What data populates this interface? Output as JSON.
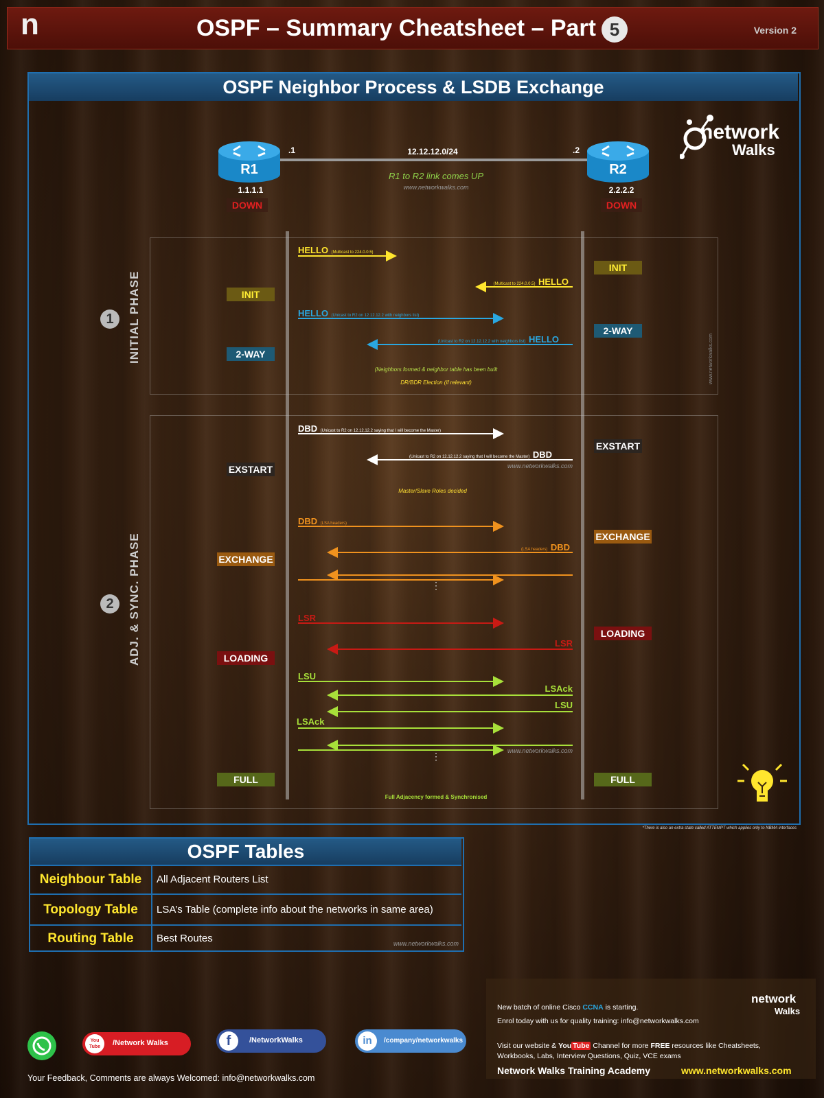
{
  "header": {
    "logo_letter": "n",
    "title": "OSPF – Summary Cheatsheet – Part",
    "part_number": "5",
    "version": "Version 2"
  },
  "section": {
    "title": "OSPF Neighbor Process & LSDB Exchange"
  },
  "brand": {
    "line1": "network",
    "line2": "Walks"
  },
  "topology": {
    "r1_name": "R1",
    "r1_id": "1.1.1.1",
    "r1_if": ".1",
    "r2_name": "R2",
    "r2_id": "2.2.2.2",
    "r2_if": ".2",
    "subnet": "12.12.12.0/24",
    "link_msg": "R1 to R2 link comes UP",
    "watermark": "www.networkwalks.com",
    "r1_state": "DOWN",
    "r2_state": "DOWN"
  },
  "phase1": {
    "number": "1",
    "label": "INITIAL PHASE",
    "hello1_label": "HELLO",
    "hello1_note": "(Multicast to 224.0.0.5)",
    "hello2_label": "HELLO",
    "hello2_note": "(Multicast to 224.0.0.5)",
    "hello3_label": "HELLO",
    "hello3_note": "(Unicast to R2 on 12.12.12.2 with neighbors list)",
    "hello4_label": "HELLO",
    "hello4_note": "(Unicast to R2 on 12.12.12.2 with neighbors list)",
    "r1_init": "INIT",
    "r2_init": "INIT",
    "r1_2way": "2-WAY",
    "r2_2way": "2-WAY",
    "note1": "(Neighbors formed & neighbor table has been built",
    "note2": "DR/BDR Election (if relevant)",
    "side_watermark": "www.networkwalks.com"
  },
  "phase2": {
    "number": "2",
    "label": "ADJ. & SYNC. PHASE",
    "dbd1_label": "DBD",
    "dbd1_note": "(Unicast to R2 on 12.12.12.2 saying that I will become the Master)",
    "dbd2_label": "DBD",
    "dbd2_note": "(Unicast to R2 on 12.12.12.2 saying that I will become the Master)",
    "dbd_watermark": "www.networkwalks.com",
    "r1_exstart": "EXSTART",
    "r2_exstart": "EXSTART",
    "master_note": "Master/Slave Roles decided",
    "dbd3_label": "DBD",
    "dbd3_note": "(LSA headers)",
    "dbd4_label": "DBD",
    "dbd4_note": "(LSA headers)",
    "r1_exchange": "EXCHANGE",
    "r2_exchange": "EXCHANGE",
    "dots": "⋮",
    "lsr1_label": "LSR",
    "lsr2_label": "LSR",
    "r1_loading": "LOADING",
    "r2_loading": "LOADING",
    "lsu1_label": "LSU",
    "lsack1_label": "LSAck",
    "lsu2_label": "LSU",
    "lsack2_label": "LSAck",
    "lsu_watermark": "www.networkwalks.com",
    "r1_full": "FULL",
    "r2_full": "FULL",
    "full_note": "Full Adjacency formed & Synchronised"
  },
  "attempt_note": "*There is also an extra state called ATTEMPT which applies only to NBMA interfaces",
  "ospf_tables": {
    "title": "OSPF Tables",
    "rows": [
      {
        "name": "Neighbour Table",
        "desc": "All Adjacent Routers List"
      },
      {
        "name": "Topology Table",
        "desc": "LSA’s Table (complete info about the networks in same area)"
      },
      {
        "name": "Routing Table",
        "desc": "Best Routes"
      }
    ],
    "watermark": "www.networkwalks.com"
  },
  "promo": {
    "line1_pre": "New batch of online Cisco ",
    "line1_ccna": "CCNA",
    "line1_post": " is starting.",
    "line2": "Enrol today with us for quality training: info@networkwalks.com",
    "line3_pre": "Visit our website & ",
    "line3_you": "You",
    "line3_tube": "Tube",
    "line3_mid": " Channel for more ",
    "line3_free": "FREE",
    "line3_post": " resources like Cheatsheets,",
    "line4": "Workbooks, Labs, Interview Questions, Quiz, VCE exams",
    "academy": "Network Walks Training Academy",
    "website": "www.networkwalks.com",
    "logo1": "network",
    "logo2": "Walks"
  },
  "social": {
    "youtube": "/Network Walks",
    "youtube_icon": "You Tube",
    "facebook": "/NetworkWalks",
    "facebook_icon": "f",
    "linkedin": "/company/networkwalks",
    "linkedin_icon": "in"
  },
  "footer": {
    "feedback": "Your Feedback, Comments are always Welcomed: info@networkwalks.com"
  },
  "colors": {
    "header_red": "#6e1a10",
    "frame_blue": "#1f6fb0",
    "hello_yellow": "#ffe62e",
    "hello_blue": "#2aa7e0",
    "dbd_white": "#ffffff",
    "dbd_orange": "#f0921e",
    "lsr_red": "#c81a14",
    "lsu_green": "#a8e03a"
  }
}
